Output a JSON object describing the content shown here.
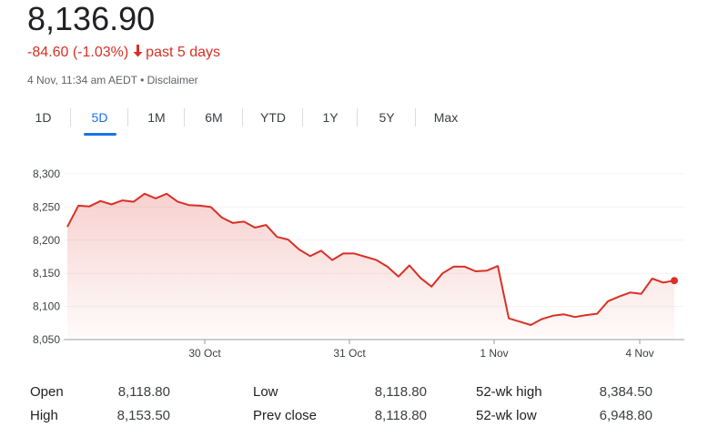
{
  "quote": {
    "price": "8,136.90",
    "change": "-84.60 (-1.03%)",
    "period": "past 5 days",
    "timestamp": "4 Nov, 11:34 am AEDT",
    "separator": "•",
    "disclaimer": "Disclaimer",
    "negative_color": "#d93025",
    "arrow_icon": "arrow-down-icon"
  },
  "tabs": [
    {
      "label": "1D",
      "active": false
    },
    {
      "label": "5D",
      "active": true
    },
    {
      "label": "1M",
      "active": false
    },
    {
      "label": "6M",
      "active": false
    },
    {
      "label": "YTD",
      "active": false
    },
    {
      "label": "1Y",
      "active": false
    },
    {
      "label": "5Y",
      "active": false
    },
    {
      "label": "Max",
      "active": false
    }
  ],
  "chart_data": {
    "type": "area",
    "title": "",
    "xlabel": "",
    "ylabel": "",
    "x_tick_labels": [
      "30 Oct",
      "31 Oct",
      "1 Nov",
      "4 Nov"
    ],
    "y_tick_labels": [
      "8,300",
      "8,250",
      "8,200",
      "8,150",
      "8,100",
      "8,050"
    ],
    "y_ticks": [
      8300,
      8250,
      8200,
      8150,
      8100,
      8050
    ],
    "ylim": [
      8050,
      8300
    ],
    "grid": true,
    "line_color": "#d93025",
    "series": [
      {
        "values": [
          8220,
          8252,
          8251,
          8259,
          8254,
          8260,
          8258,
          8270,
          8263,
          8270,
          8258,
          8253,
          8252,
          8250,
          8234,
          8226,
          8228,
          8219,
          8223,
          8205,
          8201,
          8186,
          8176,
          8184,
          8170,
          8180,
          8180,
          8175,
          8170,
          8160,
          8145,
          8162,
          8143,
          8130,
          8150,
          8160,
          8160,
          8153,
          8154,
          8161,
          8082,
          8077,
          8072,
          8081,
          8086,
          8088,
          8084,
          8087,
          8089,
          8108,
          8115,
          8121,
          8119,
          8142,
          8136,
          8139
        ]
      }
    ]
  },
  "stats": [
    {
      "label": "Open",
      "value": "8,118.80"
    },
    {
      "label": "Low",
      "value": "8,118.80"
    },
    {
      "label": "52-wk high",
      "value": "8,384.50"
    },
    {
      "label": "High",
      "value": "8,153.50"
    },
    {
      "label": "Prev close",
      "value": "8,118.80"
    },
    {
      "label": "52-wk low",
      "value": "6,948.80"
    }
  ]
}
